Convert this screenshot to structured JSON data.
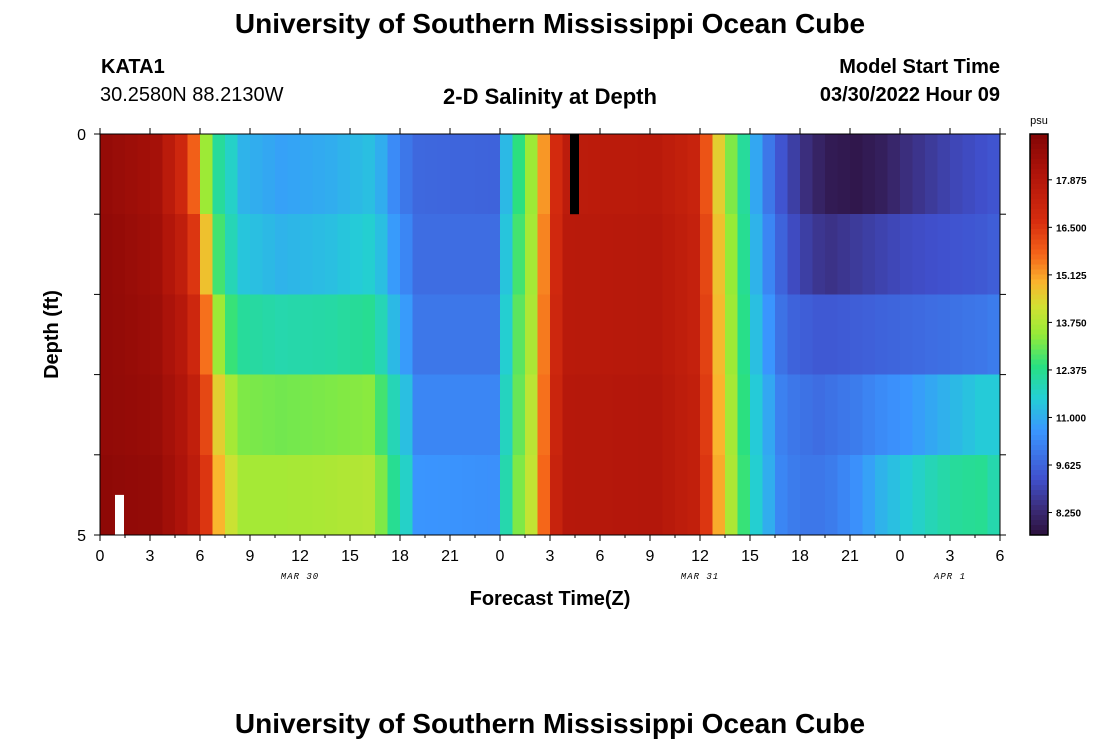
{
  "header": {
    "title": "University of Southern Mississippi Ocean Cube",
    "station_id": "KATA1",
    "coords": "30.2580N  88.2130W",
    "subtitle": "2-D Salinity at Depth",
    "model_start_label": "Model Start Time",
    "model_start_value": "03/30/2022 Hour 09"
  },
  "footer": {
    "title": "University of Southern Mississippi Ocean Cube"
  },
  "chart_data": {
    "type": "heatmap",
    "title": "2-D Salinity at Depth",
    "xlabel": "Forecast Time(Z)",
    "ylabel": "Depth (ft)",
    "x_range_hours": [
      0,
      54
    ],
    "y_range_ft": [
      0,
      5
    ],
    "x_ticks": [
      "0",
      "3",
      "6",
      "9",
      "12",
      "15",
      "18",
      "21",
      "0",
      "3",
      "6",
      "9",
      "12",
      "15",
      "18",
      "21",
      "0",
      "3",
      "6"
    ],
    "y_ticks": [
      "0",
      "5"
    ],
    "date_labels": [
      {
        "label": "MAR 30",
        "hour": 12
      },
      {
        "label": "MAR 31",
        "hour": 36
      },
      {
        "label": "APR 1",
        "hour": 51
      }
    ],
    "colorbar": {
      "unit": "psu",
      "ticks": [
        "17.875",
        "16.500",
        "15.125",
        "13.750",
        "12.375",
        "11.000",
        "9.625",
        "8.250"
      ],
      "min": 7.6,
      "max": 19.2
    },
    "depth_layers_ft": [
      0,
      1,
      2,
      3,
      4,
      5
    ],
    "columns": 72,
    "salinity_keyframes": [
      {
        "col": 0,
        "layers": [
          18.7,
          18.8,
          18.8,
          18.8,
          18.9,
          18.9
        ]
      },
      {
        "col": 4,
        "layers": [
          18.3,
          18.4,
          18.5,
          18.6,
          18.7,
          18.7
        ]
      },
      {
        "col": 6,
        "layers": [
          17.0,
          17.5,
          17.8,
          18.0,
          18.1,
          18.2
        ]
      },
      {
        "col": 7,
        "layers": [
          15.8,
          16.5,
          17.0,
          17.4,
          17.6,
          17.7
        ]
      },
      {
        "col": 8,
        "layers": [
          13.5,
          14.7,
          15.6,
          16.2,
          16.5,
          16.6
        ]
      },
      {
        "col": 9,
        "layers": [
          12.2,
          12.7,
          13.5,
          14.5,
          14.9,
          15.2
        ]
      },
      {
        "col": 10,
        "layers": [
          11.7,
          11.9,
          12.6,
          13.6,
          14.1,
          14.4
        ]
      },
      {
        "col": 11,
        "layers": [
          11.1,
          11.4,
          12.2,
          13.2,
          13.6,
          13.9
        ]
      },
      {
        "col": 14,
        "layers": [
          10.8,
          11.1,
          12.0,
          13.1,
          13.6,
          13.9
        ]
      },
      {
        "col": 18,
        "layers": [
          11.0,
          11.3,
          12.1,
          13.2,
          13.7,
          14.0
        ]
      },
      {
        "col": 21,
        "layers": [
          11.3,
          11.6,
          12.3,
          13.3,
          13.8,
          14.1
        ]
      },
      {
        "col": 22,
        "layers": [
          11.0,
          11.3,
          11.9,
          12.7,
          13.2,
          13.5
        ]
      },
      {
        "col": 23,
        "layers": [
          10.4,
          10.7,
          11.2,
          11.9,
          12.3,
          12.6
        ]
      },
      {
        "col": 24,
        "layers": [
          10.0,
          10.3,
          10.7,
          11.3,
          11.7,
          12.0
        ]
      },
      {
        "col": 25,
        "layers": [
          9.7,
          9.8,
          10.0,
          10.3,
          10.6,
          10.9
        ]
      },
      {
        "col": 31,
        "layers": [
          9.6,
          9.8,
          10.0,
          10.3,
          10.5,
          10.8
        ]
      },
      {
        "col": 32,
        "layers": [
          11.2,
          11.4,
          11.6,
          11.8,
          12.0,
          12.2
        ]
      },
      {
        "col": 33,
        "layers": [
          12.5,
          12.7,
          12.9,
          13.0,
          13.2,
          13.4
        ]
      },
      {
        "col": 34,
        "layers": [
          13.5,
          13.6,
          13.7,
          13.9,
          14.0,
          14.1
        ]
      },
      {
        "col": 35,
        "layers": [
          15.2,
          15.4,
          15.5,
          15.6,
          15.7,
          15.8
        ]
      },
      {
        "col": 36,
        "layers": [
          16.8,
          16.9,
          17.0,
          17.1,
          17.2,
          17.3
        ]
      },
      {
        "col": 37,
        "layers": [
          17.6,
          17.7,
          17.7,
          17.8,
          17.8,
          17.9
        ]
      },
      {
        "col": 44,
        "layers": [
          17.7,
          17.8,
          17.8,
          17.9,
          17.9,
          18.0
        ]
      },
      {
        "col": 47,
        "layers": [
          17.2,
          17.3,
          17.3,
          17.4,
          17.4,
          17.5
        ]
      },
      {
        "col": 48,
        "layers": [
          16.0,
          16.2,
          16.3,
          16.4,
          16.5,
          16.6
        ]
      },
      {
        "col": 49,
        "layers": [
          14.5,
          14.7,
          14.8,
          14.9,
          15.0,
          15.1
        ]
      },
      {
        "col": 50,
        "layers": [
          13.2,
          13.4,
          13.5,
          13.6,
          13.7,
          13.8
        ]
      },
      {
        "col": 51,
        "layers": [
          12.2,
          12.3,
          12.4,
          12.5,
          12.6,
          12.7
        ]
      },
      {
        "col": 52,
        "layers": [
          10.9,
          11.1,
          11.3,
          11.5,
          11.6,
          11.8
        ]
      },
      {
        "col": 53,
        "layers": [
          10.0,
          10.3,
          10.6,
          10.9,
          11.0,
          11.2
        ]
      },
      {
        "col": 54,
        "layers": [
          9.3,
          9.6,
          9.9,
          10.2,
          10.3,
          10.5
        ]
      },
      {
        "col": 55,
        "layers": [
          8.8,
          9.1,
          9.6,
          10.0,
          10.1,
          10.3
        ]
      },
      {
        "col": 56,
        "layers": [
          8.4,
          8.8,
          9.5,
          9.9,
          10.0,
          10.2
        ]
      },
      {
        "col": 57,
        "layers": [
          8.1,
          8.6,
          9.4,
          9.8,
          10.0,
          10.1
        ]
      },
      {
        "col": 58,
        "layers": [
          7.9,
          8.5,
          9.4,
          9.9,
          10.1,
          10.2
        ]
      },
      {
        "col": 60,
        "layers": [
          7.8,
          8.7,
          9.5,
          10.1,
          10.5,
          11.0
        ]
      },
      {
        "col": 62,
        "layers": [
          8.0,
          8.9,
          9.6,
          10.4,
          11.1,
          11.9
        ]
      },
      {
        "col": 64,
        "layers": [
          8.4,
          9.1,
          9.7,
          10.6,
          11.5,
          12.6
        ]
      },
      {
        "col": 66,
        "layers": [
          8.7,
          9.2,
          9.8,
          10.9,
          11.9,
          13.0
        ]
      },
      {
        "col": 68,
        "layers": [
          9.0,
          9.3,
          9.9,
          11.2,
          12.2,
          13.3
        ]
      },
      {
        "col": 70,
        "layers": [
          9.2,
          9.4,
          10.0,
          11.5,
          12.3,
          13.0
        ]
      },
      {
        "col": 71,
        "layers": [
          9.3,
          9.5,
          10.1,
          11.5,
          12.0,
          12.5
        ]
      }
    ],
    "missing_markers": [
      {
        "hour": 28.5,
        "depth_from": 0,
        "depth_to": 1,
        "color": "#000000"
      },
      {
        "hour": 1.2,
        "depth_from": 4.5,
        "depth_to": 5,
        "color": "#ffffff"
      }
    ]
  }
}
